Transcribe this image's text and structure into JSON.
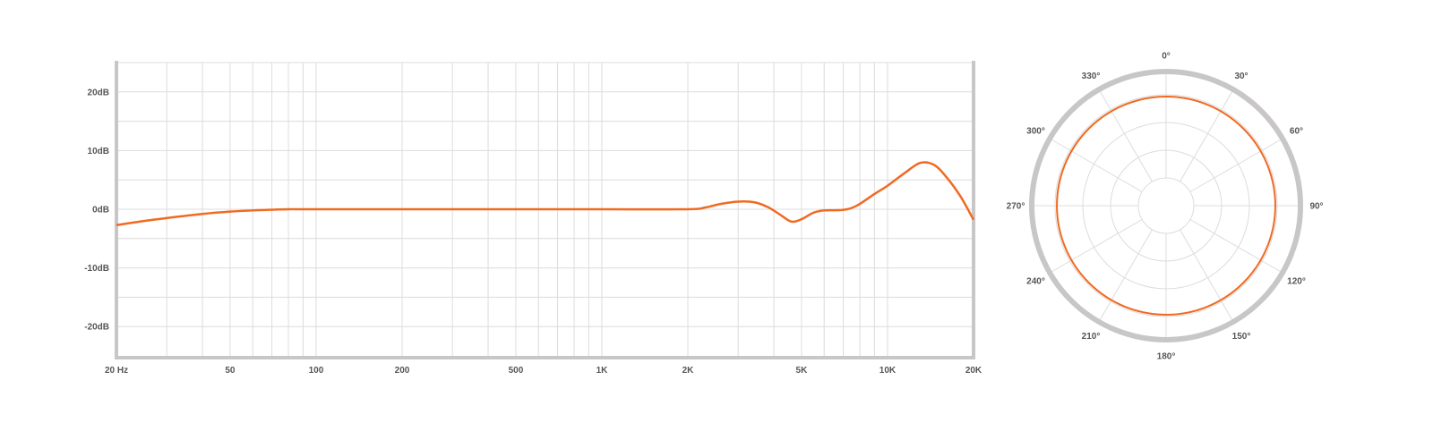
{
  "colors": {
    "curve": "#f06a22",
    "grid": "#dcdcdc",
    "frame": "#c8c6c6",
    "text": "#555555"
  },
  "chart_data": [
    {
      "type": "line",
      "xscale": "log",
      "xlim": [
        20,
        20000
      ],
      "ylim": [
        -25,
        25
      ],
      "grid": true,
      "x_ticks": [
        {
          "value": 20,
          "label": "20 Hz"
        },
        {
          "value": 50,
          "label": "50"
        },
        {
          "value": 100,
          "label": "100"
        },
        {
          "value": 200,
          "label": "200"
        },
        {
          "value": 500,
          "label": "500"
        },
        {
          "value": 1000,
          "label": "1K"
        },
        {
          "value": 2000,
          "label": "2K"
        },
        {
          "value": 5000,
          "label": "5K"
        },
        {
          "value": 10000,
          "label": "10K"
        },
        {
          "value": 20000,
          "label": "20K"
        }
      ],
      "y_ticks": [
        {
          "value": 20,
          "label": "20dB"
        },
        {
          "value": 10,
          "label": "10dB"
        },
        {
          "value": 0,
          "label": "0dB"
        },
        {
          "value": -10,
          "label": "-10dB"
        },
        {
          "value": -20,
          "label": "-20dB"
        }
      ],
      "series": [
        {
          "x": [
            20,
            25,
            30,
            40,
            50,
            60,
            80,
            100,
            500,
            1000,
            2000,
            2300,
            2600,
            3000,
            3400,
            3800,
            4200,
            4600,
            5000,
            5500,
            6000,
            7000,
            7800,
            9000,
            10000,
            11500,
            13000,
            14500,
            16000,
            18000,
            20000
          ],
          "y": [
            -2.7,
            -2.0,
            -1.5,
            -0.8,
            -0.4,
            -0.2,
            0,
            0,
            0,
            0,
            0,
            0.3,
            0.9,
            1.3,
            1.2,
            0.4,
            -0.9,
            -2.1,
            -1.7,
            -0.6,
            -0.2,
            -0.1,
            0.6,
            2.6,
            4.0,
            6.2,
            7.9,
            7.6,
            5.6,
            2.2,
            -1.8
          ]
        }
      ]
    },
    {
      "type": "polar",
      "angle_labels": [
        "0°",
        "30°",
        "60°",
        "90°",
        "120°",
        "150°",
        "180°",
        "210°",
        "240°",
        "270°",
        "300°",
        "330°"
      ],
      "pattern": "omnidirectional",
      "series": [
        {
          "angles": [
            0,
            30,
            60,
            90,
            120,
            150,
            180,
            210,
            240,
            270,
            300,
            330
          ],
          "level": [
            0.8,
            0.8,
            0.8,
            0.8,
            0.8,
            0.8,
            0.8,
            0.8,
            0.8,
            0.8,
            0.8,
            0.8
          ]
        }
      ]
    }
  ]
}
